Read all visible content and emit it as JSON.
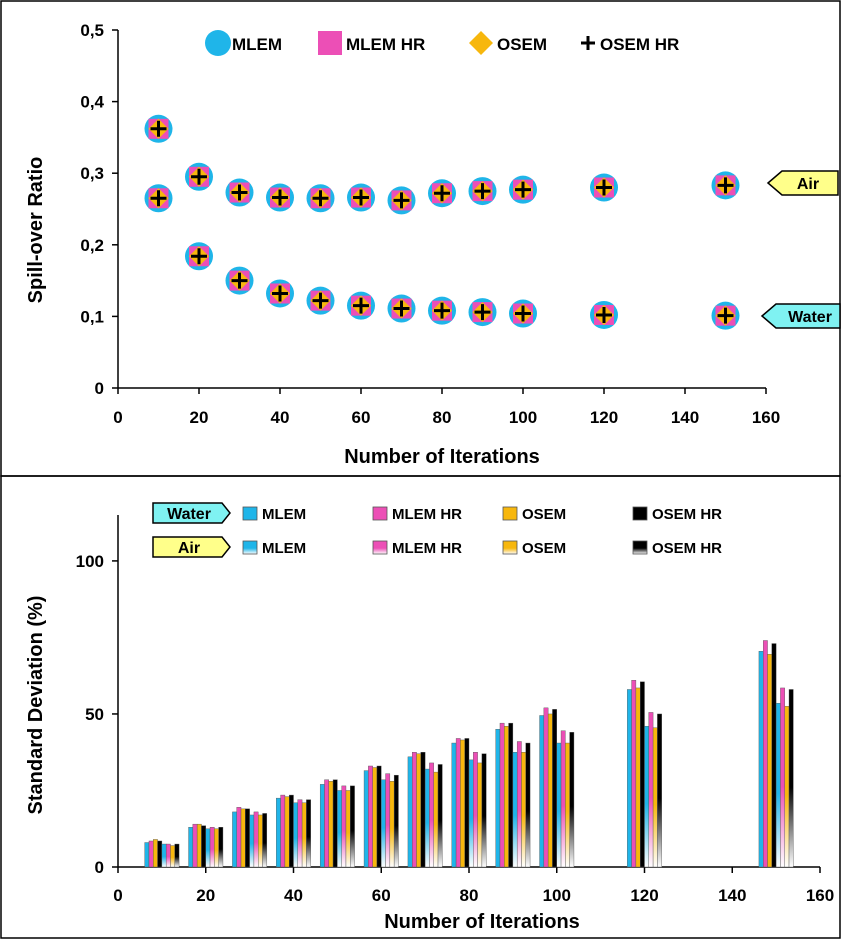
{
  "colors": {
    "mlem": "#1fb5e9",
    "mlem_hr": "#ec4fb6",
    "osem": "#f7b70d",
    "osem_hr": "#000000",
    "air_tag": "#ffff8a",
    "water_tag": "#7ff2f2"
  },
  "chart_data": [
    {
      "type": "scatter",
      "xlabel": "Number of Iterations",
      "ylabel": "Spill-over Ratio",
      "xlim": [
        0,
        160
      ],
      "ylim": [
        0,
        0.5
      ],
      "xticks": [
        "0",
        "20",
        "40",
        "60",
        "80",
        "100",
        "120",
        "140",
        "160"
      ],
      "yticks": [
        "0",
        "0,1",
        "0,2",
        "0,3",
        "0,4",
        "0,5"
      ],
      "legend_position": "top",
      "series_names": [
        "MLEM",
        "MLEM HR",
        "OSEM",
        "OSEM HR"
      ],
      "tags": {
        "air": "Air",
        "water": "Water"
      },
      "x": [
        10,
        20,
        30,
        40,
        50,
        60,
        70,
        80,
        90,
        100,
        120,
        150
      ],
      "air": [
        0.265,
        0.295,
        0.273,
        0.266,
        0.265,
        0.266,
        0.262,
        0.272,
        0.275,
        0.277,
        0.28,
        0.283
      ],
      "water": [
        0.362,
        0.184,
        0.15,
        0.132,
        0.122,
        0.115,
        0.111,
        0.108,
        0.106,
        0.104,
        0.102,
        0.101
      ]
    },
    {
      "type": "bar",
      "xlabel": "Number of Iterations",
      "ylabel": "Standard Deviation (%)",
      "xlim": [
        0,
        160
      ],
      "ylim": [
        0,
        115
      ],
      "xticks": [
        "0",
        "20",
        "40",
        "60",
        "80",
        "100",
        "120",
        "140",
        "160"
      ],
      "yticks": [
        "0",
        "50",
        "100"
      ],
      "legend_position": "top",
      "tags": {
        "water": "Water",
        "air": "Air"
      },
      "series_names": [
        "MLEM",
        "MLEM HR",
        "OSEM",
        "OSEM HR"
      ],
      "x": [
        10,
        20,
        30,
        40,
        50,
        60,
        70,
        80,
        90,
        100,
        120,
        150
      ],
      "water": [
        {
          "name": "MLEM",
          "values": [
            8,
            13,
            18,
            22.5,
            27,
            31.5,
            36,
            40.5,
            45,
            49.5,
            58,
            70.5
          ]
        },
        {
          "name": "MLEM HR",
          "values": [
            8.5,
            14,
            19.5,
            23.5,
            28.5,
            33,
            37.5,
            42,
            47,
            52,
            61,
            74
          ]
        },
        {
          "name": "OSEM",
          "values": [
            9,
            14,
            19,
            23,
            28,
            32.5,
            37,
            41.5,
            46,
            50,
            58.5,
            69.5
          ]
        },
        {
          "name": "OSEM HR",
          "values": [
            8.5,
            13.5,
            19,
            23.5,
            28.5,
            33,
            37.5,
            42,
            47,
            51.5,
            60.5,
            73
          ]
        }
      ],
      "air": [
        {
          "name": "MLEM",
          "values": [
            7.5,
            12.5,
            17,
            21,
            25,
            28.5,
            32,
            35,
            37.5,
            40.5,
            46,
            53.5
          ]
        },
        {
          "name": "MLEM HR",
          "values": [
            7.5,
            13,
            18,
            22,
            26.5,
            30.5,
            34,
            37.5,
            41,
            44.5,
            50.5,
            58.5
          ]
        },
        {
          "name": "OSEM",
          "values": [
            7,
            12.5,
            17,
            21,
            25,
            28,
            31,
            34,
            37.5,
            40.5,
            45.5,
            52.5
          ]
        },
        {
          "name": "OSEM HR",
          "values": [
            7.5,
            13,
            17.5,
            22,
            26.5,
            30,
            33.5,
            37,
            40.5,
            44,
            50,
            58
          ]
        }
      ]
    }
  ]
}
